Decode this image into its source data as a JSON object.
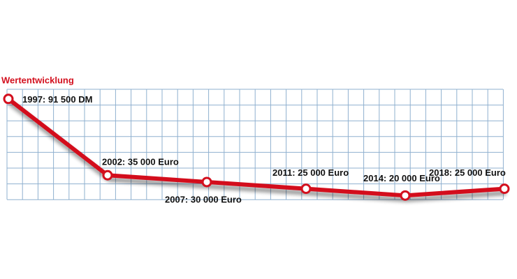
{
  "chart_data": {
    "type": "line",
    "title": "Wertentwicklung",
    "values": [
      91500,
      35000,
      30000,
      25000,
      20000,
      25000
    ],
    "value_labels": [
      "1997: 91 500 DM",
      "2002: 35 000 Euro",
      "2007: 30 000 Euro",
      "2011: 25 000 Euro",
      "2014: 20 000 Euro",
      "2018: 25 000 Euro"
    ],
    "color": "#d3101e",
    "ylim": [
      15000,
      95000
    ],
    "grid": true
  }
}
